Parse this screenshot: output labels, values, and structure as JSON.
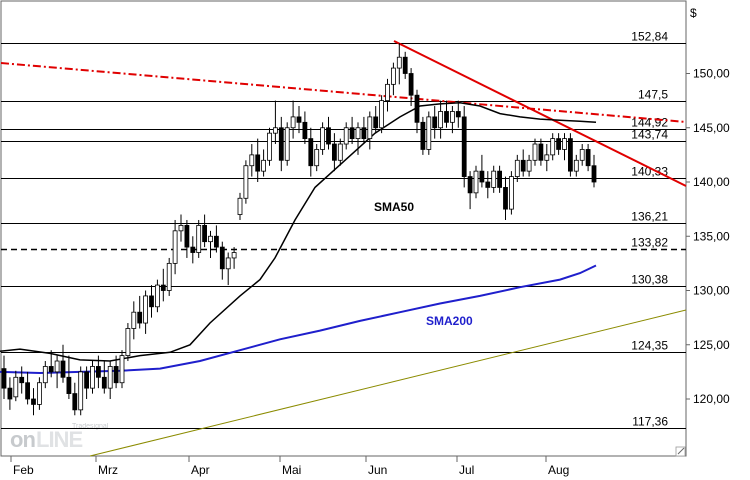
{
  "chart_data": {
    "type": "candlestick",
    "currency_label": "$",
    "watermark": "Tradesignal online",
    "ylim": [
      115,
      155
    ],
    "yticks": [
      "120,00",
      "125,00",
      "130,00",
      "135,00",
      "140,00",
      "145,00",
      "150,00"
    ],
    "months": [
      "Feb",
      "Mrz",
      "Apr",
      "Mai",
      "Jun",
      "Jul",
      "Aug"
    ],
    "hlines": [
      {
        "value": 152.84,
        "label": "152,84",
        "style": "solid"
      },
      {
        "value": 147.5,
        "label": "147,5",
        "style": "solid"
      },
      {
        "value": 144.92,
        "label": "144,92",
        "style": "solid"
      },
      {
        "value": 143.74,
        "label": "143,74",
        "style": "solid"
      },
      {
        "value": 140.33,
        "label": "140,33",
        "style": "solid"
      },
      {
        "value": 136.21,
        "label": "136,21",
        "style": "solid"
      },
      {
        "value": 133.82,
        "label": "133,82",
        "style": "dashed"
      },
      {
        "value": 130.38,
        "label": "130,38",
        "style": "solid"
      },
      {
        "value": 124.35,
        "label": "124,35",
        "style": "solid"
      },
      {
        "value": 117.36,
        "label": "117,36",
        "style": "solid"
      }
    ],
    "sma50_label": "SMA50",
    "sma200_label": "SMA200",
    "sma50": [
      [
        0,
        124.4
      ],
      [
        20,
        124.6
      ],
      [
        50,
        124.2
      ],
      [
        80,
        123.6
      ],
      [
        110,
        123.5
      ],
      [
        140,
        124.0
      ],
      [
        170,
        124.3
      ],
      [
        190,
        125.0
      ],
      [
        210,
        127.0
      ],
      [
        240,
        129.5
      ],
      [
        260,
        131.0
      ],
      [
        275,
        133.0
      ],
      [
        295,
        136.5
      ],
      [
        315,
        139.5
      ],
      [
        345,
        142.0
      ],
      [
        375,
        144.5
      ],
      [
        400,
        146.0
      ],
      [
        420,
        147.0
      ],
      [
        440,
        147.2
      ],
      [
        460,
        147.3
      ],
      [
        480,
        147.0
      ],
      [
        500,
        146.3
      ],
      [
        520,
        146.0
      ],
      [
        540,
        145.8
      ],
      [
        560,
        145.7
      ],
      [
        580,
        145.6
      ],
      [
        596,
        145.5
      ]
    ],
    "sma200": [
      [
        0,
        122.5
      ],
      [
        40,
        122.4
      ],
      [
        80,
        122.5
      ],
      [
        120,
        122.6
      ],
      [
        160,
        122.8
      ],
      [
        200,
        123.5
      ],
      [
        240,
        124.5
      ],
      [
        280,
        125.5
      ],
      [
        320,
        126.3
      ],
      [
        360,
        127.2
      ],
      [
        400,
        128.0
      ],
      [
        440,
        128.8
      ],
      [
        480,
        129.5
      ],
      [
        520,
        130.3
      ],
      [
        560,
        131.0
      ],
      [
        580,
        131.6
      ],
      [
        596,
        132.3
      ]
    ],
    "candles": [
      {
        "i": 0,
        "o": 122.8,
        "h": 124.0,
        "l": 120.0,
        "c": 121.0
      },
      {
        "i": 1,
        "o": 121.0,
        "h": 122.0,
        "l": 119.0,
        "c": 120.0
      },
      {
        "i": 2,
        "o": 120.2,
        "h": 122.6,
        "l": 119.8,
        "c": 122.0
      },
      {
        "i": 3,
        "o": 122.0,
        "h": 123.0,
        "l": 120.5,
        "c": 121.5
      },
      {
        "i": 4,
        "o": 121.5,
        "h": 122.5,
        "l": 119.5,
        "c": 120.0
      },
      {
        "i": 5,
        "o": 120.0,
        "h": 121.0,
        "l": 118.5,
        "c": 119.5
      },
      {
        "i": 6,
        "o": 119.5,
        "h": 122.0,
        "l": 119.0,
        "c": 121.5
      },
      {
        "i": 7,
        "o": 121.5,
        "h": 123.5,
        "l": 121.0,
        "c": 123.0
      },
      {
        "i": 8,
        "o": 123.0,
        "h": 124.5,
        "l": 122.0,
        "c": 122.5
      },
      {
        "i": 9,
        "o": 122.5,
        "h": 124.0,
        "l": 121.0,
        "c": 123.5
      },
      {
        "i": 10,
        "o": 123.5,
        "h": 125.0,
        "l": 121.5,
        "c": 122.0
      },
      {
        "i": 11,
        "o": 122.0,
        "h": 124.0,
        "l": 120.0,
        "c": 120.5
      },
      {
        "i": 12,
        "o": 120.5,
        "h": 121.5,
        "l": 118.5,
        "c": 119.0
      },
      {
        "i": 13,
        "o": 119.0,
        "h": 123.0,
        "l": 118.5,
        "c": 122.5
      },
      {
        "i": 14,
        "o": 122.5,
        "h": 123.0,
        "l": 120.0,
        "c": 121.0
      },
      {
        "i": 15,
        "o": 121.0,
        "h": 123.5,
        "l": 120.5,
        "c": 123.0
      },
      {
        "i": 16,
        "o": 123.0,
        "h": 124.0,
        "l": 121.0,
        "c": 122.0
      },
      {
        "i": 17,
        "o": 122.0,
        "h": 123.5,
        "l": 120.5,
        "c": 121.0
      },
      {
        "i": 18,
        "o": 121.0,
        "h": 123.5,
        "l": 120.0,
        "c": 123.0
      },
      {
        "i": 19,
        "o": 123.0,
        "h": 124.0,
        "l": 121.0,
        "c": 121.5
      },
      {
        "i": 20,
        "o": 121.5,
        "h": 124.5,
        "l": 121.0,
        "c": 124.0
      },
      {
        "i": 21,
        "o": 124.0,
        "h": 127.0,
        "l": 123.5,
        "c": 126.5
      },
      {
        "i": 22,
        "o": 126.5,
        "h": 129.0,
        "l": 125.5,
        "c": 128.0
      },
      {
        "i": 23,
        "o": 128.0,
        "h": 129.5,
        "l": 126.5,
        "c": 127.0
      },
      {
        "i": 24,
        "o": 127.0,
        "h": 130.0,
        "l": 126.0,
        "c": 129.5
      },
      {
        "i": 25,
        "o": 129.5,
        "h": 130.5,
        "l": 127.5,
        "c": 128.5
      },
      {
        "i": 26,
        "o": 128.5,
        "h": 131.0,
        "l": 128.0,
        "c": 130.5
      },
      {
        "i": 27,
        "o": 130.5,
        "h": 132.0,
        "l": 129.0,
        "c": 130.0
      },
      {
        "i": 28,
        "o": 130.0,
        "h": 133.0,
        "l": 129.5,
        "c": 132.5
      },
      {
        "i": 29,
        "o": 132.5,
        "h": 136.5,
        "l": 131.5,
        "c": 135.5
      },
      {
        "i": 30,
        "o": 135.5,
        "h": 137.0,
        "l": 134.5,
        "c": 136.0
      },
      {
        "i": 31,
        "o": 136.0,
        "h": 136.5,
        "l": 133.0,
        "c": 134.0
      },
      {
        "i": 32,
        "o": 134.0,
        "h": 135.0,
        "l": 132.5,
        "c": 133.5
      },
      {
        "i": 33,
        "o": 133.5,
        "h": 136.5,
        "l": 133.0,
        "c": 136.0
      },
      {
        "i": 34,
        "o": 136.0,
        "h": 137.0,
        "l": 134.0,
        "c": 134.5
      },
      {
        "i": 35,
        "o": 134.5,
        "h": 135.5,
        "l": 133.0,
        "c": 135.0
      },
      {
        "i": 36,
        "o": 135.0,
        "h": 136.0,
        "l": 133.5,
        "c": 134.0
      },
      {
        "i": 37,
        "o": 134.0,
        "h": 134.5,
        "l": 131.0,
        "c": 132.0
      },
      {
        "i": 38,
        "o": 132.0,
        "h": 133.5,
        "l": 130.5,
        "c": 133.0
      },
      {
        "i": 39,
        "o": 133.0,
        "h": 134.0,
        "l": 132.0,
        "c": 133.5
      },
      {
        "i": 40,
        "o": 137.0,
        "h": 139.0,
        "l": 136.5,
        "c": 138.5
      },
      {
        "i": 41,
        "o": 138.5,
        "h": 142.0,
        "l": 138.0,
        "c": 141.5
      },
      {
        "i": 42,
        "o": 141.5,
        "h": 143.5,
        "l": 140.5,
        "c": 142.5
      },
      {
        "i": 43,
        "o": 142.5,
        "h": 144.0,
        "l": 140.0,
        "c": 141.0
      },
      {
        "i": 44,
        "o": 141.0,
        "h": 143.0,
        "l": 140.5,
        "c": 142.0
      },
      {
        "i": 45,
        "o": 142.0,
        "h": 145.0,
        "l": 141.5,
        "c": 144.5
      },
      {
        "i": 46,
        "o": 144.5,
        "h": 147.5,
        "l": 143.5,
        "c": 145.0
      },
      {
        "i": 47,
        "o": 145.0,
        "h": 146.0,
        "l": 141.0,
        "c": 142.0
      },
      {
        "i": 48,
        "o": 142.0,
        "h": 145.5,
        "l": 141.5,
        "c": 145.0
      },
      {
        "i": 49,
        "o": 145.0,
        "h": 147.5,
        "l": 144.0,
        "c": 146.0
      },
      {
        "i": 50,
        "o": 146.0,
        "h": 147.0,
        "l": 144.5,
        "c": 145.5
      },
      {
        "i": 51,
        "o": 145.5,
        "h": 146.5,
        "l": 143.5,
        "c": 144.0
      },
      {
        "i": 52,
        "o": 144.0,
        "h": 145.0,
        "l": 140.5,
        "c": 141.5
      },
      {
        "i": 53,
        "o": 141.5,
        "h": 143.5,
        "l": 141.0,
        "c": 143.0
      },
      {
        "i": 54,
        "o": 143.0,
        "h": 145.5,
        "l": 142.5,
        "c": 145.0
      },
      {
        "i": 55,
        "o": 145.0,
        "h": 146.0,
        "l": 143.0,
        "c": 143.5
      },
      {
        "i": 56,
        "o": 143.5,
        "h": 144.5,
        "l": 141.0,
        "c": 142.0
      },
      {
        "i": 57,
        "o": 142.0,
        "h": 144.0,
        "l": 141.5,
        "c": 143.5
      },
      {
        "i": 58,
        "o": 143.5,
        "h": 145.5,
        "l": 143.0,
        "c": 145.0
      },
      {
        "i": 59,
        "o": 145.0,
        "h": 146.0,
        "l": 143.5,
        "c": 144.0
      },
      {
        "i": 60,
        "o": 144.0,
        "h": 145.5,
        "l": 142.5,
        "c": 145.0
      },
      {
        "i": 61,
        "o": 145.0,
        "h": 146.0,
        "l": 143.5,
        "c": 144.0
      },
      {
        "i": 62,
        "o": 144.0,
        "h": 146.5,
        "l": 143.0,
        "c": 146.0
      },
      {
        "i": 63,
        "o": 146.0,
        "h": 147.0,
        "l": 144.5,
        "c": 145.0
      },
      {
        "i": 64,
        "o": 145.0,
        "h": 148.0,
        "l": 144.5,
        "c": 147.5
      },
      {
        "i": 65,
        "o": 147.5,
        "h": 149.5,
        "l": 146.5,
        "c": 149.0
      },
      {
        "i": 66,
        "o": 149.0,
        "h": 151.0,
        "l": 148.0,
        "c": 150.5
      },
      {
        "i": 67,
        "o": 150.5,
        "h": 152.8,
        "l": 149.0,
        "c": 151.5
      },
      {
        "i": 68,
        "o": 151.5,
        "h": 152.0,
        "l": 149.5,
        "c": 150.0
      },
      {
        "i": 69,
        "o": 150.0,
        "h": 150.5,
        "l": 147.0,
        "c": 148.0
      },
      {
        "i": 70,
        "o": 148.0,
        "h": 148.5,
        "l": 144.5,
        "c": 145.5
      },
      {
        "i": 71,
        "o": 145.5,
        "h": 146.0,
        "l": 142.5,
        "c": 143.0
      },
      {
        "i": 72,
        "o": 143.0,
        "h": 146.5,
        "l": 142.5,
        "c": 146.0
      },
      {
        "i": 73,
        "o": 146.0,
        "h": 147.0,
        "l": 144.0,
        "c": 145.0
      },
      {
        "i": 74,
        "o": 145.0,
        "h": 147.5,
        "l": 144.0,
        "c": 146.5
      },
      {
        "i": 75,
        "o": 146.5,
        "h": 147.5,
        "l": 145.0,
        "c": 145.5
      },
      {
        "i": 76,
        "o": 145.5,
        "h": 147.0,
        "l": 144.5,
        "c": 146.5
      },
      {
        "i": 77,
        "o": 146.5,
        "h": 147.5,
        "l": 145.0,
        "c": 146.0
      },
      {
        "i": 78,
        "o": 146.0,
        "h": 147.0,
        "l": 139.5,
        "c": 140.5
      },
      {
        "i": 79,
        "o": 140.5,
        "h": 141.0,
        "l": 137.5,
        "c": 139.0
      },
      {
        "i": 80,
        "o": 139.0,
        "h": 141.5,
        "l": 138.5,
        "c": 141.0
      },
      {
        "i": 81,
        "o": 141.0,
        "h": 142.5,
        "l": 139.5,
        "c": 140.0
      },
      {
        "i": 82,
        "o": 140.0,
        "h": 141.0,
        "l": 138.5,
        "c": 139.5
      },
      {
        "i": 83,
        "o": 139.5,
        "h": 141.5,
        "l": 139.0,
        "c": 141.0
      },
      {
        "i": 84,
        "o": 141.0,
        "h": 141.5,
        "l": 139.0,
        "c": 139.5
      },
      {
        "i": 85,
        "o": 139.5,
        "h": 140.5,
        "l": 136.5,
        "c": 137.5
      },
      {
        "i": 86,
        "o": 137.5,
        "h": 141.0,
        "l": 137.0,
        "c": 140.5
      },
      {
        "i": 87,
        "o": 140.5,
        "h": 142.5,
        "l": 140.0,
        "c": 142.0
      },
      {
        "i": 88,
        "o": 142.0,
        "h": 143.0,
        "l": 140.5,
        "c": 141.0
      },
      {
        "i": 89,
        "o": 141.0,
        "h": 142.5,
        "l": 140.5,
        "c": 142.0
      },
      {
        "i": 90,
        "o": 142.0,
        "h": 144.0,
        "l": 141.5,
        "c": 143.5
      },
      {
        "i": 91,
        "o": 143.5,
        "h": 144.0,
        "l": 141.5,
        "c": 142.0
      },
      {
        "i": 92,
        "o": 142.0,
        "h": 143.5,
        "l": 141.0,
        "c": 142.5
      },
      {
        "i": 93,
        "o": 142.5,
        "h": 144.5,
        "l": 142.0,
        "c": 144.0
      },
      {
        "i": 94,
        "o": 144.0,
        "h": 144.5,
        "l": 142.5,
        "c": 143.0
      },
      {
        "i": 95,
        "o": 143.0,
        "h": 144.5,
        "l": 142.0,
        "c": 144.0
      },
      {
        "i": 96,
        "o": 144.0,
        "h": 144.5,
        "l": 140.5,
        "c": 141.0
      },
      {
        "i": 97,
        "o": 141.0,
        "h": 142.5,
        "l": 140.5,
        "c": 142.0
      },
      {
        "i": 98,
        "o": 142.0,
        "h": 143.5,
        "l": 141.5,
        "c": 143.0
      },
      {
        "i": 99,
        "o": 143.0,
        "h": 143.5,
        "l": 141.0,
        "c": 141.5
      },
      {
        "i": 100,
        "o": 141.5,
        "h": 142.5,
        "l": 139.5,
        "c": 140.0
      }
    ]
  }
}
